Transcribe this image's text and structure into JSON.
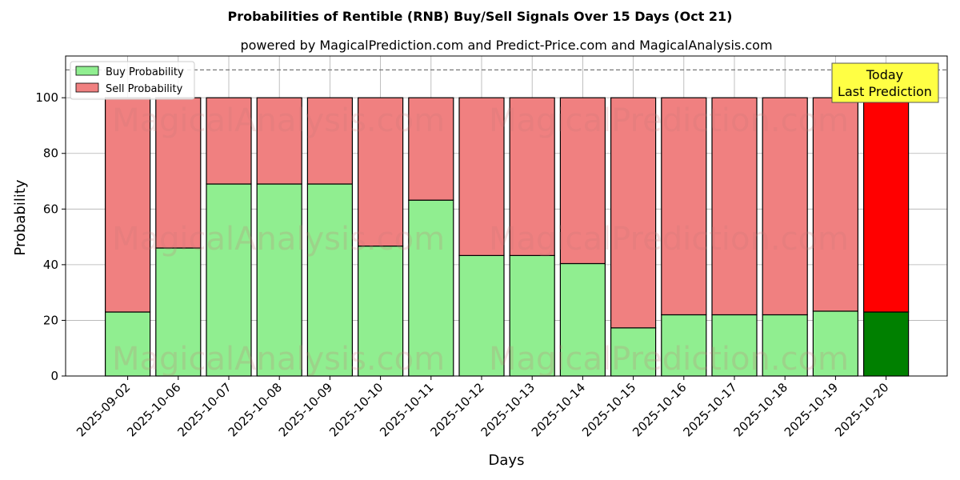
{
  "chart_data": {
    "type": "bar",
    "stacked": true,
    "title": "Probabilities of Rentible (RNB) Buy/Sell Signals Over 15 Days (Oct 21)",
    "subtitle": "powered by MagicalPrediction.com and Predict-Price.com and MagicalAnalysis.com",
    "xlabel": "Days",
    "ylabel": "Probability",
    "ylim": [
      0,
      115
    ],
    "yticks": [
      0,
      20,
      40,
      60,
      80,
      100
    ],
    "reference_line": 110,
    "grid": true,
    "legend_position": "top-left",
    "categories": [
      "2025-09-02",
      "2025-10-06",
      "2025-10-07",
      "2025-10-08",
      "2025-10-09",
      "2025-10-10",
      "2025-10-11",
      "2025-10-12",
      "2025-10-13",
      "2025-10-14",
      "2025-10-15",
      "2025-10-16",
      "2025-10-17",
      "2025-10-18",
      "2025-10-19",
      "2025-10-20"
    ],
    "series": [
      {
        "name": "Buy Probability",
        "color": "#90ee90",
        "values": [
          23,
          46,
          69,
          69,
          69,
          46.7,
          63.2,
          43.3,
          43.3,
          40.4,
          17.3,
          22,
          22,
          22,
          23.3,
          23
        ]
      },
      {
        "name": "Sell Probability",
        "color": "#f08080",
        "values": [
          77,
          54,
          31,
          31,
          31,
          53.3,
          36.8,
          56.7,
          56.7,
          59.6,
          82.7,
          78,
          78,
          78,
          76.7,
          77
        ]
      }
    ],
    "highlight": {
      "index": 15,
      "buy_color": "#008000",
      "sell_color": "#ff0000"
    },
    "annotation": {
      "line1": "Today",
      "line2": "Last Prediction",
      "color": "#ffff44"
    },
    "watermarks": [
      "MagicalAnalysis.com",
      "MagicalPrediction.com"
    ]
  }
}
